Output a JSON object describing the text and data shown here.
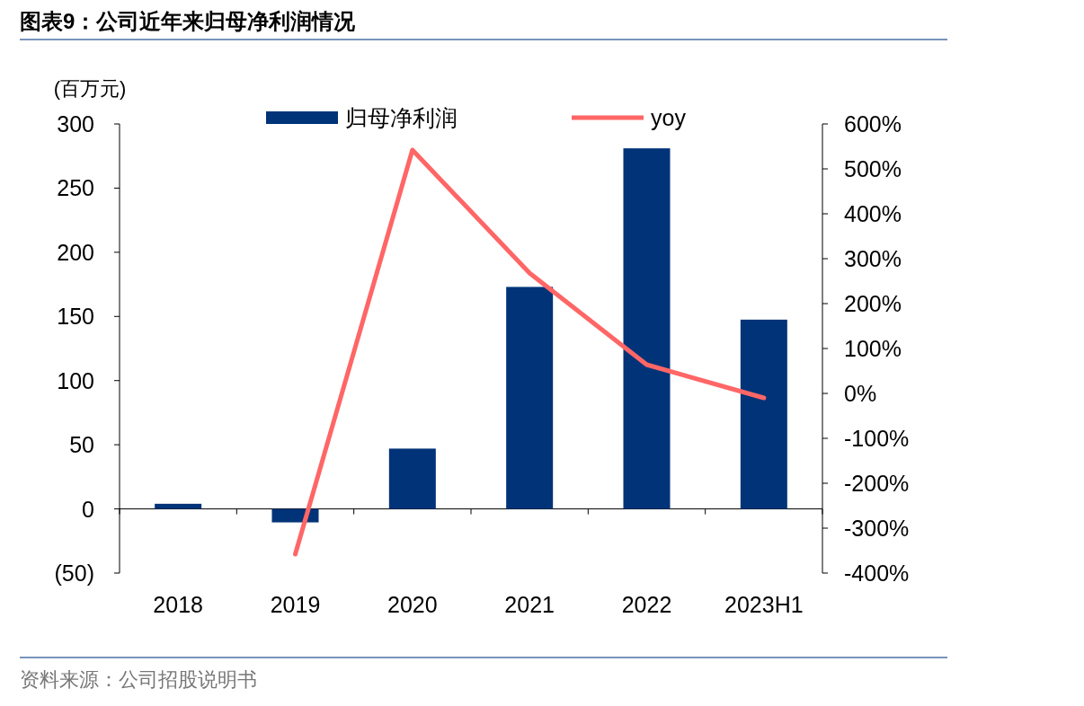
{
  "chart_data": {
    "type": "bar",
    "title": "图表9：公司近年来归母净利润情况",
    "ylabel": "(百万元)",
    "categories": [
      "2018",
      "2019",
      "2020",
      "2021",
      "2022",
      "2023H1"
    ],
    "series": [
      {
        "name": "归母净利润",
        "color": "#003378",
        "values": [
          4,
          -10.5,
          47,
          173,
          281,
          147.5
        ]
      },
      {
        "name": "yoy",
        "type": "line",
        "axis": "y2",
        "color": "#ff6666",
        "values": [
          null,
          -358,
          542,
          268,
          64,
          -10
        ]
      }
    ],
    "ylim": [
      -50,
      300
    ],
    "yticks": [
      {
        "value": -50,
        "label": "(50)"
      },
      0,
      50,
      100,
      150,
      200,
      250,
      300
    ],
    "y2lim": [
      -400,
      600
    ],
    "y2ticks": [
      {
        "value": -400,
        "label": "-400%"
      },
      {
        "value": -300,
        "label": "-300%"
      },
      {
        "value": -200,
        "label": "-200%"
      },
      {
        "value": -100,
        "label": "-100%"
      },
      {
        "value": 0,
        "label": "0%"
      },
      {
        "value": 100,
        "label": "100%"
      },
      {
        "value": 200,
        "label": "200%"
      },
      {
        "value": 300,
        "label": "300%"
      },
      {
        "value": 400,
        "label": "400%"
      },
      {
        "value": 500,
        "label": "500%"
      },
      {
        "value": 600,
        "label": "600%"
      }
    ],
    "legend": "top",
    "annotations": [
      "资料来源：公司招股说明书"
    ]
  }
}
